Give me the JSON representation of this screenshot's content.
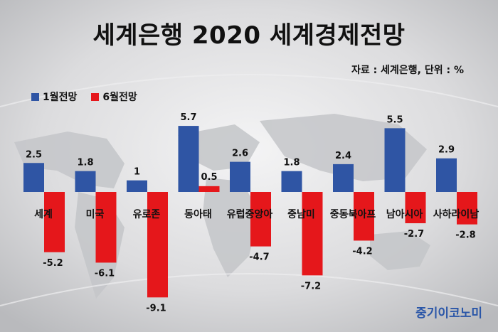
{
  "header": {
    "title": "세계은행 2020 세계경제전망",
    "source": "자료 : 세계은행, 단위 : %"
  },
  "brand": "중기이코노미",
  "colors": {
    "jan": "#2f55a4",
    "jun": "#e5171b",
    "text": "#111111"
  },
  "chart_data": {
    "type": "bar",
    "title": "세계은행 2020 세계경제전망",
    "categories": [
      "세계",
      "미국",
      "유로존",
      "동아태",
      "유럽중앙아",
      "중남미",
      "중동북아프",
      "남아시아",
      "사하라이남"
    ],
    "series": [
      {
        "name": "1월전망",
        "values": [
          2.5,
          1.8,
          1,
          5.7,
          2.6,
          1.8,
          2.4,
          5.5,
          2.9
        ]
      },
      {
        "name": "6월전망",
        "values": [
          -5.2,
          -6.1,
          -9.1,
          0.5,
          -4.7,
          -7.2,
          -4.2,
          -2.7,
          -2.8
        ]
      }
    ],
    "value_labels": {
      "jan": [
        "2.5",
        "1.8",
        "1",
        "5.7",
        "2.6",
        "1.8",
        "2.4",
        "5.5",
        "2.9"
      ],
      "jun": [
        "-5.2",
        "-6.1",
        "-9.1",
        "0.5",
        "-4.7",
        "-7.2",
        "-4.2",
        "-2.7",
        "-2.8"
      ]
    },
    "ylabel": "",
    "xlabel": "",
    "ylim": [
      -9.1,
      5.7
    ],
    "grid": false,
    "legend_position": "top-left"
  }
}
